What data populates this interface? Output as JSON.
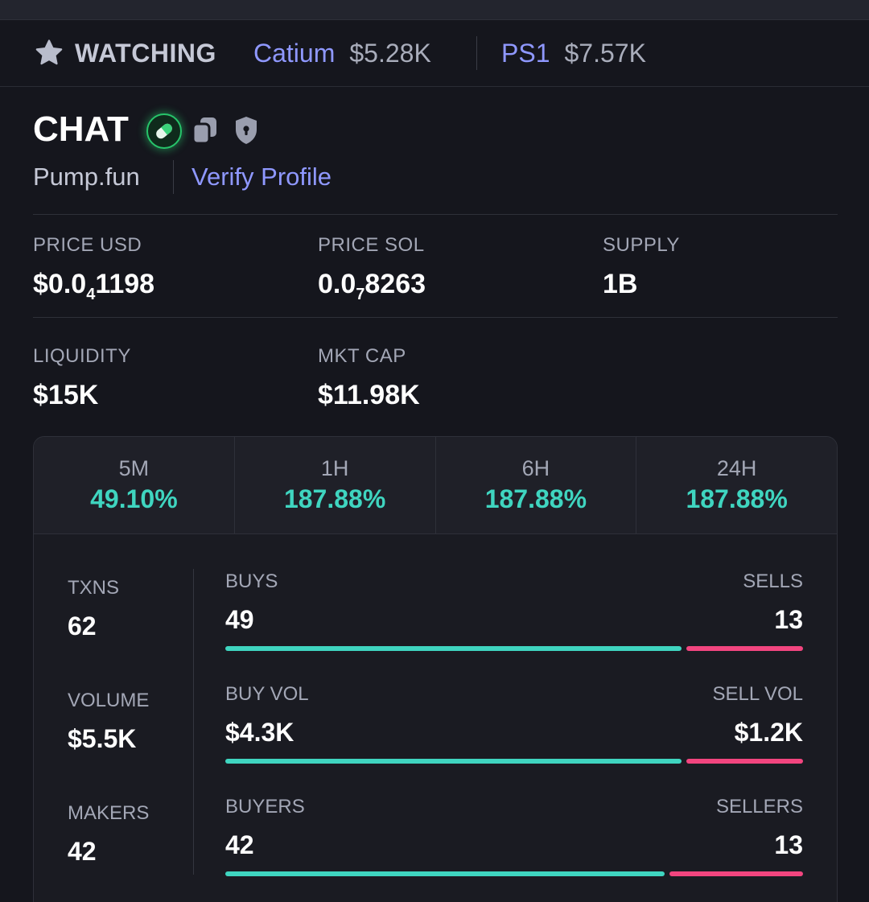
{
  "watchbar": {
    "label": "WATCHING",
    "items": [
      {
        "name": "Catium",
        "value": "$5.28K"
      },
      {
        "name": "PS1",
        "value": "$7.57K"
      }
    ]
  },
  "token": {
    "name": "CHAT",
    "platform": "Pump.fun",
    "verify_label": "Verify Profile"
  },
  "stats": {
    "price_usd": {
      "label": "PRICE USD",
      "prefix": "$0.0",
      "sub": "4",
      "suffix": "1198"
    },
    "price_sol": {
      "label": "PRICE SOL",
      "prefix": "0.0",
      "sub": "7",
      "suffix": "8263"
    },
    "supply": {
      "label": "SUPPLY",
      "value": "1B"
    },
    "liquidity": {
      "label": "LIQUIDITY",
      "value": "$15K"
    },
    "mkt_cap": {
      "label": "MKT CAP",
      "value": "$11.98K"
    }
  },
  "timeframes": [
    {
      "label": "5M",
      "value": "49.10%"
    },
    {
      "label": "1H",
      "value": "187.88%"
    },
    {
      "label": "6H",
      "value": "187.88%"
    },
    {
      "label": "24H",
      "value": "187.88%"
    }
  ],
  "metrics": {
    "txns": {
      "label": "TXNS",
      "value": "62"
    },
    "volume": {
      "label": "VOLUME",
      "value": "$5.5K"
    },
    "makers": {
      "label": "MAKERS",
      "value": "42"
    }
  },
  "bars": [
    {
      "left_label": "BUYS",
      "left_value": "49",
      "right_label": "SELLS",
      "right_value": "13",
      "buy_fraction": 0.79
    },
    {
      "left_label": "BUY VOL",
      "left_value": "$4.3K",
      "right_label": "SELL VOL",
      "right_value": "$1.2K",
      "buy_fraction": 0.79
    },
    {
      "left_label": "BUYERS",
      "left_value": "42",
      "right_label": "SELLERS",
      "right_value": "13",
      "buy_fraction": 0.76
    }
  ],
  "colors": {
    "accent_link": "#8f98ff",
    "positive": "#3fd5c0",
    "negative": "#f2457f",
    "background": "#15161d"
  },
  "icons": [
    "star-icon",
    "pill-icon",
    "copy-icon",
    "shield-lock-icon"
  ]
}
